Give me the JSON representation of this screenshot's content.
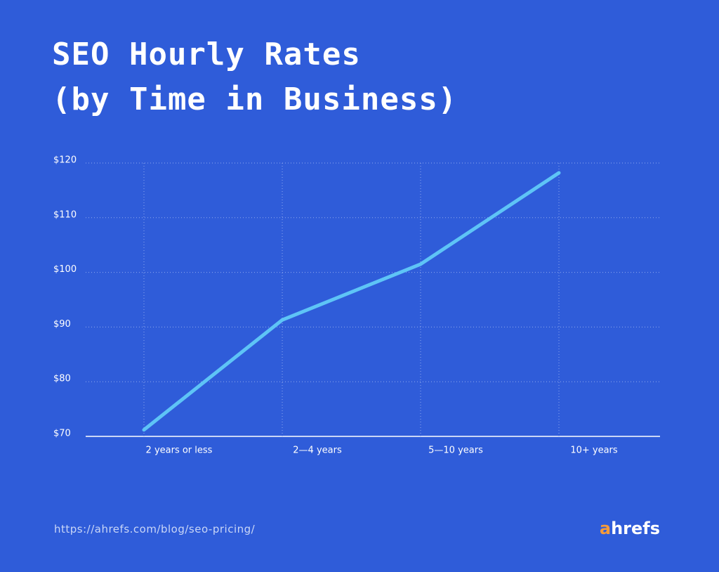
{
  "chart_data": {
    "type": "line",
    "title": "SEO Hourly Rates",
    "subtitle": "(by Time in Business)",
    "categories": [
      "2 years or less",
      "2—4 years",
      "5—10 years",
      "10+ years"
    ],
    "values": [
      71.2,
      91.3,
      101.5,
      118.2
    ],
    "color": "#5ec4f6",
    "ylim": [
      70,
      120
    ],
    "yticks": [
      {
        "value": 70,
        "label": "$70"
      },
      {
        "value": 80,
        "label": "$80"
      },
      {
        "value": 90,
        "label": "$90"
      },
      {
        "value": 100,
        "label": "$100"
      },
      {
        "value": 110,
        "label": "$110"
      },
      {
        "value": 120,
        "label": "$120"
      }
    ],
    "grid": true,
    "source": "https://ahrefs.com/blog/seo-pricing/",
    "brand": "ahrefs"
  }
}
